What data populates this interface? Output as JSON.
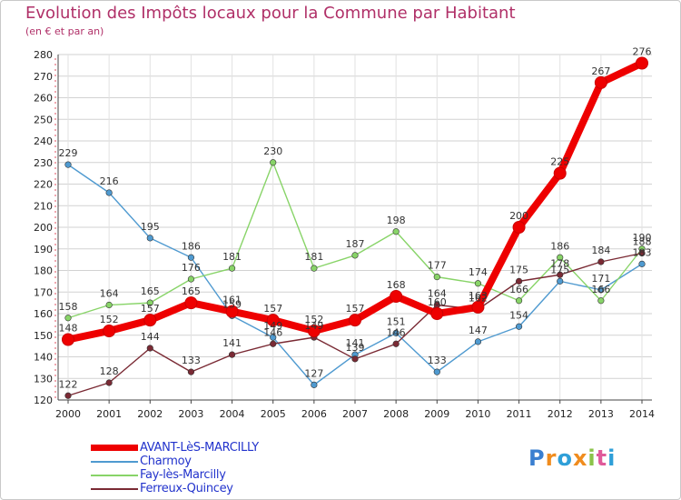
{
  "title": "Evolution des Impôts locaux pour la Commune par Habitant",
  "subtitle": "(en € et par an)",
  "brand": {
    "letters": [
      "P",
      "r",
      "o",
      "x",
      "i",
      "t",
      "i"
    ],
    "colors": [
      "#3a7fd0",
      "#f08c1e",
      "#2f9fd8",
      "#f08c1e",
      "#8bc34a",
      "#e05a9a",
      "#2f9fd8"
    ]
  },
  "chart_data": {
    "type": "line",
    "title": "Evolution des Impôts locaux pour la Commune par Habitant",
    "subtitle": "(en € et par an)",
    "xlabel": "",
    "ylabel": "",
    "ylim": [
      120,
      280
    ],
    "yticks": [
      120,
      130,
      140,
      150,
      160,
      170,
      180,
      190,
      200,
      210,
      220,
      230,
      240,
      250,
      260,
      270,
      280
    ],
    "x": [
      "2000",
      "2001",
      "2002",
      "2003",
      "2004",
      "2005",
      "2006",
      "2007",
      "2008",
      "2009",
      "2010",
      "2011",
      "2012",
      "2013",
      "2014"
    ],
    "series": [
      {
        "name": "Charmoy",
        "color": "#4f9ad0",
        "values": [
          229,
          216,
          195,
          186,
          159,
          149,
          127,
          141,
          151,
          133,
          147,
          154,
          175,
          171,
          183
        ],
        "labels": [
          "229",
          "216",
          "195",
          "186",
          "159",
          "149",
          "127",
          "141",
          "151",
          "133",
          "147",
          "154",
          "175",
          "171",
          "183"
        ]
      },
      {
        "name": "Fay-lès-Marcilly",
        "color": "#88d468",
        "values": [
          158,
          164,
          165,
          176,
          181,
          230,
          181,
          187,
          198,
          177,
          174,
          166,
          186,
          166,
          190
        ],
        "labels": [
          "158",
          "164",
          "165",
          "176",
          "181",
          "230",
          "181",
          "187",
          "198",
          "177",
          "174",
          "166",
          "186",
          "166",
          "190"
        ]
      },
      {
        "name": "Ferreux-Quincey",
        "color": "#7a2a34",
        "values": [
          122,
          128,
          144,
          133,
          141,
          146,
          149,
          139,
          146,
          164,
          162,
          175,
          178,
          184,
          188
        ],
        "labels": [
          "122",
          "128",
          "144",
          "133",
          "141",
          "146",
          "149",
          "139",
          "146",
          "164",
          "162",
          "175",
          "178",
          "184",
          "188"
        ]
      },
      {
        "name": "AVANT-LèS-MARCILLY",
        "color": "#ee0000",
        "values": [
          148,
          152,
          157,
          165,
          161,
          157,
          152,
          157,
          168,
          160,
          163,
          200,
          225,
          267,
          276
        ],
        "labels": [
          "148",
          "152",
          "157",
          "165",
          "161",
          "157",
          "152",
          "157",
          "168",
          "160",
          "163",
          "200",
          "225",
          "267",
          "276"
        ]
      }
    ],
    "legend": [
      "AVANT-LèS-MARCILLY",
      "Charmoy",
      "Fay-lès-Marcilly",
      "Ferreux-Quincey"
    ],
    "legend_position": "bottom-left",
    "grid": true
  }
}
